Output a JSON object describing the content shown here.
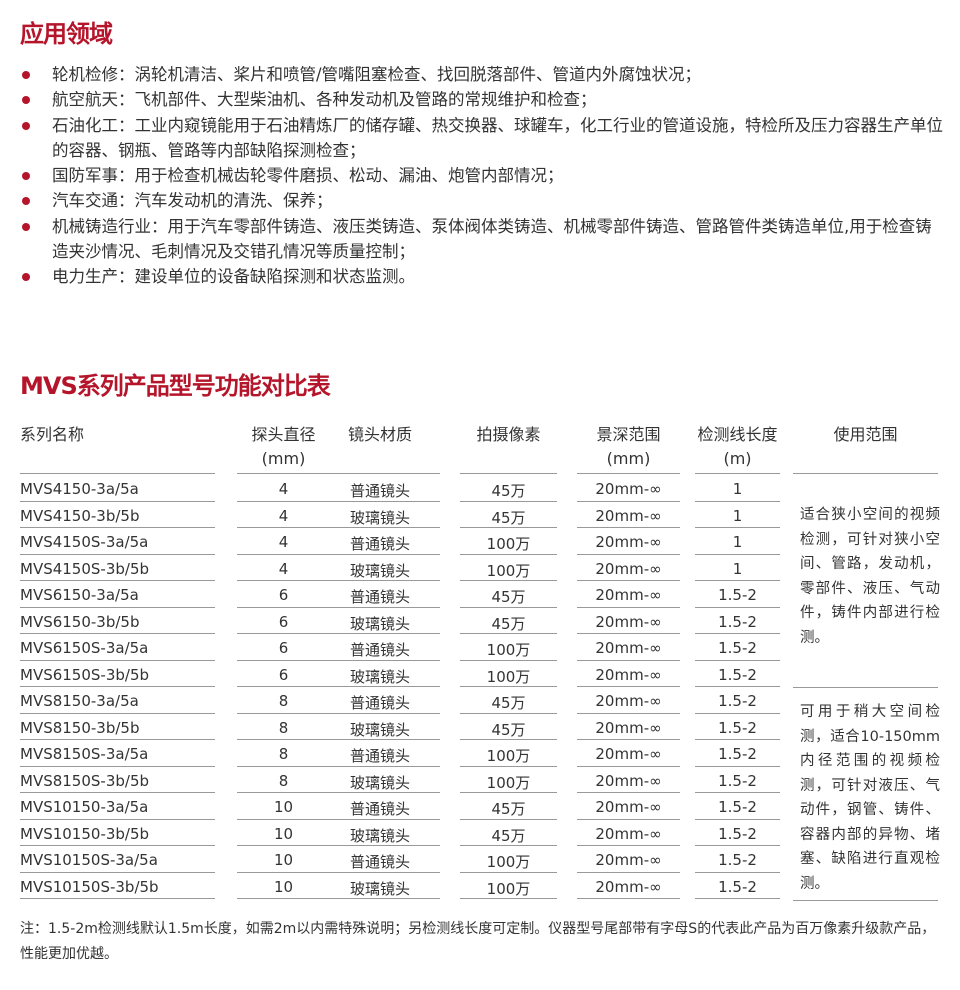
{
  "section1_title": "应用领域",
  "applications": [
    "轮机检修：涡轮机清洁、桨片和喷管/管嘴阻塞检查、找回脱落部件、管道内外腐蚀状况；",
    "航空航天：飞机部件、大型柴油机、各种发动机及管路的常规维护和检查；",
    "石油化工：工业内窥镜能用于石油精炼厂的储存罐、热交换器、球罐车，化工行业的管道设施，特检所及压力容器生产单位的容器、钢瓶、管路等内部缺陷探测检查；",
    "国防军事：用于检查机械齿轮零件磨损、松动、漏油、炮管内部情况；",
    "汽车交通：汽车发动机的清洗、保养；",
    "机械铸造行业：用于汽车零部件铸造、液压类铸造、泵体阀体类铸造、机械零部件铸造、管路管件类铸造单位,用于检查铸造夹沙情况、毛刺情况及交错孔情况等质量控制；",
    "电力生产：建设单位的设备缺陷探测和状态监测。"
  ],
  "section2_title": "MVS系列产品型号功能对比表",
  "table": {
    "headers": [
      [
        "系列名称",
        ""
      ],
      [
        "探头直径",
        "(mm)"
      ],
      [
        "镜头材质",
        ""
      ],
      [
        "拍摄像素",
        ""
      ],
      [
        "景深范围",
        "(mm)"
      ],
      [
        "检测线长度",
        "(m)"
      ],
      [
        "使用范围",
        ""
      ]
    ],
    "rows": [
      [
        "MVS4150-3a/5a",
        "4",
        "普通镜头",
        "45万",
        "20mm-∞",
        "1"
      ],
      [
        "MVS4150-3b/5b",
        "4",
        "玻璃镜头",
        "45万",
        "20mm-∞",
        "1"
      ],
      [
        "MVS4150S-3a/5a",
        "4",
        "普通镜头",
        "100万",
        "20mm-∞",
        "1"
      ],
      [
        "MVS4150S-3b/5b",
        "4",
        "玻璃镜头",
        "100万",
        "20mm-∞",
        "1"
      ],
      [
        "MVS6150-3a/5a",
        "6",
        "普通镜头",
        "45万",
        "20mm-∞",
        "1.5-2"
      ],
      [
        "MVS6150-3b/5b",
        "6",
        "玻璃镜头",
        "45万",
        "20mm-∞",
        "1.5-2"
      ],
      [
        "MVS6150S-3a/5a",
        "6",
        "普通镜头",
        "100万",
        "20mm-∞",
        "1.5-2"
      ],
      [
        "MVS6150S-3b/5b",
        "6",
        "玻璃镜头",
        "100万",
        "20mm-∞",
        "1.5-2"
      ],
      [
        "MVS8150-3a/5a",
        "8",
        "普通镜头",
        "45万",
        "20mm-∞",
        "1.5-2"
      ],
      [
        "MVS8150-3b/5b",
        "8",
        "玻璃镜头",
        "45万",
        "20mm-∞",
        "1.5-2"
      ],
      [
        "MVS8150S-3a/5a",
        "8",
        "普通镜头",
        "100万",
        "20mm-∞",
        "1.5-2"
      ],
      [
        "MVS8150S-3b/5b",
        "8",
        "玻璃镜头",
        "100万",
        "20mm-∞",
        "1.5-2"
      ],
      [
        "MVS10150-3a/5a",
        "10",
        "普通镜头",
        "45万",
        "20mm-∞",
        "1.5-2"
      ],
      [
        "MVS10150-3b/5b",
        "10",
        "玻璃镜头",
        "45万",
        "20mm-∞",
        "1.5-2"
      ],
      [
        "MVS10150S-3a/5a",
        "10",
        "普通镜头",
        "100万",
        "20mm-∞",
        "1.5-2"
      ],
      [
        "MVS10150S-3b/5b",
        "10",
        "玻璃镜头",
        "100万",
        "20mm-∞",
        "1.5-2"
      ]
    ],
    "usage": [
      "适合狭小空间的视频检测，可针对狭小空间、管路，发动机，零部件、液压、气动件，铸件内部进行检测。",
      "可用于稍大空间检测，适合10-150mm内径范围的视频检测，可针对液压、气动件，钢管、铸件、容器内部的异物、堵塞、缺陷进行直观检测。"
    ]
  },
  "note": "注：1.5-2m检测线默认1.5m长度，如需2m以内需特殊说明；另检测线长度可定制。仪器型号尾部带有字母S的代表此产品为百万像素升级款产品，性能更加优越。",
  "colors": {
    "accent": "#b5152b"
  }
}
